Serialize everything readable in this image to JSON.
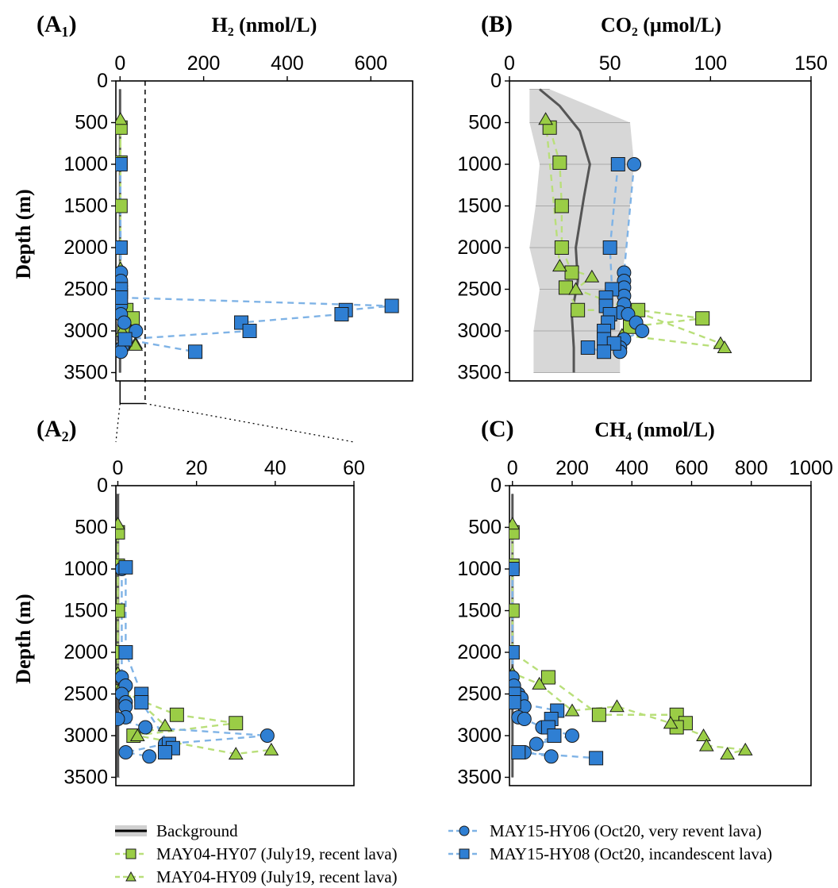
{
  "colors": {
    "green": "#9acd46",
    "green_line": "#b9df7a",
    "blue": "#2f7fd3",
    "blue_line": "#7fb3e6",
    "background_line": "#555555",
    "background_band": "#d0d0d0"
  },
  "legend": [
    {
      "label": "Background",
      "marker": "band"
    },
    {
      "label": "MAY04-HY07 (July19, recent lava)",
      "marker": "square",
      "color": "green"
    },
    {
      "label": "MAY04-HY09 (July19, recent lava)",
      "marker": "triangle",
      "color": "green"
    },
    {
      "label": "MAY15-HY06 (Oct20, very revent lava)",
      "marker": "circle",
      "color": "blue"
    },
    {
      "label": "MAY15-HY08 (Oct20, incandescent lava)",
      "marker": "square",
      "color": "blue"
    }
  ],
  "chart_data": [
    {
      "id": "A1",
      "type": "scatter",
      "panel_label": "(A₁)",
      "title": "H₂ (nmol/L)",
      "ylabel": "Depth (m)",
      "xlim": [
        -10,
        700
      ],
      "ylim": [
        0,
        3600
      ],
      "xticks": [
        0,
        200,
        400,
        600
      ],
      "yticks": [
        0,
        500,
        1000,
        1500,
        2000,
        2500,
        3000,
        3500
      ],
      "zoom_box": {
        "x": [
          0,
          60
        ],
        "y": [
          0,
          3700
        ]
      },
      "background": {
        "line": [
          {
            "x": 0,
            "y": 100
          },
          {
            "x": 0,
            "y": 3500
          }
        ],
        "band": [
          {
            "x0": -2,
            "x1": 2,
            "y": 100
          },
          {
            "x0": -2,
            "x1": 2,
            "y": 3500
          }
        ]
      },
      "series": [
        {
          "marker": "square",
          "color": "green",
          "points": [
            {
              "x": 1,
              "y": 560
            },
            {
              "x": 1,
              "y": 980
            },
            {
              "x": 1,
              "y": 1500
            },
            {
              "x": 1,
              "y": 2000
            },
            {
              "x": 1,
              "y": 2470
            },
            {
              "x": 15,
              "y": 2750
            },
            {
              "x": 30,
              "y": 2850
            },
            {
              "x": 10,
              "y": 3000
            }
          ]
        },
        {
          "marker": "triangle",
          "color": "green",
          "points": [
            {
              "x": 1,
              "y": 460
            },
            {
              "x": 1,
              "y": 2250
            },
            {
              "x": 2,
              "y": 2400
            },
            {
              "x": 12,
              "y": 2880
            },
            {
              "x": 5,
              "y": 3000
            },
            {
              "x": 37,
              "y": 3150
            },
            {
              "x": 37,
              "y": 3170
            }
          ]
        },
        {
          "marker": "circle",
          "color": "blue",
          "points": [
            {
              "x": 0,
              "y": 1000
            },
            {
              "x": 2,
              "y": 2300
            },
            {
              "x": 2,
              "y": 2400
            },
            {
              "x": 2,
              "y": 2500
            },
            {
              "x": 2,
              "y": 2600
            },
            {
              "x": 2,
              "y": 2700
            },
            {
              "x": 2,
              "y": 2800
            },
            {
              "x": 10,
              "y": 2900
            },
            {
              "x": 38,
              "y": 3000
            },
            {
              "x": 10,
              "y": 3100
            },
            {
              "x": 5,
              "y": 3200
            },
            {
              "x": 2,
              "y": 3250
            }
          ]
        },
        {
          "marker": "square",
          "color": "blue",
          "points": [
            {
              "x": 1,
              "y": 1000
            },
            {
              "x": 1,
              "y": 2000
            },
            {
              "x": 2,
              "y": 2500
            },
            {
              "x": 2,
              "y": 2600
            },
            {
              "x": 650,
              "y": 2700
            },
            {
              "x": 540,
              "y": 2750
            },
            {
              "x": 530,
              "y": 2800
            },
            {
              "x": 290,
              "y": 2900
            },
            {
              "x": 310,
              "y": 3000
            },
            {
              "x": 12,
              "y": 3100
            },
            {
              "x": 180,
              "y": 3250
            }
          ]
        }
      ]
    },
    {
      "id": "B",
      "type": "scatter",
      "panel_label": "(B)",
      "title": "CO₂ (µmol/L)",
      "ylabel": "",
      "xlim": [
        0,
        150
      ],
      "ylim": [
        0,
        3600
      ],
      "xticks": [
        0,
        50,
        100,
        150
      ],
      "yticks": [
        0,
        500,
        1000,
        1500,
        2000,
        2500,
        3000,
        3500
      ],
      "background": {
        "line": [
          {
            "x": 15,
            "y": 100
          },
          {
            "x": 25,
            "y": 300
          },
          {
            "x": 35,
            "y": 600
          },
          {
            "x": 40,
            "y": 1000
          },
          {
            "x": 37,
            "y": 1400
          },
          {
            "x": 33,
            "y": 2000
          },
          {
            "x": 34,
            "y": 2400
          },
          {
            "x": 31,
            "y": 2800
          },
          {
            "x": 32,
            "y": 3200
          },
          {
            "x": 32,
            "y": 3500
          }
        ],
        "band": [
          {
            "x0": 10,
            "x1": 20,
            "y": 100
          },
          {
            "x0": 10,
            "x1": 60,
            "y": 500
          },
          {
            "x0": 15,
            "x1": 62,
            "y": 1000
          },
          {
            "x0": 13,
            "x1": 60,
            "y": 1500
          },
          {
            "x0": 10,
            "x1": 58,
            "y": 2000
          },
          {
            "x0": 15,
            "x1": 55,
            "y": 2500
          },
          {
            "x0": 12,
            "x1": 55,
            "y": 3000
          },
          {
            "x0": 12,
            "x1": 55,
            "y": 3500
          }
        ]
      },
      "series": [
        {
          "marker": "square",
          "color": "green",
          "points": [
            {
              "x": 20,
              "y": 560
            },
            {
              "x": 25,
              "y": 980
            },
            {
              "x": 26,
              "y": 1500
            },
            {
              "x": 26,
              "y": 2000
            },
            {
              "x": 31,
              "y": 2300
            },
            {
              "x": 28,
              "y": 2480
            },
            {
              "x": 34,
              "y": 2750
            },
            {
              "x": 64,
              "y": 2750
            },
            {
              "x": 96,
              "y": 2850
            },
            {
              "x": 60,
              "y": 2950
            }
          ]
        },
        {
          "marker": "triangle",
          "color": "green",
          "points": [
            {
              "x": 18,
              "y": 460
            },
            {
              "x": 25,
              "y": 2220
            },
            {
              "x": 41,
              "y": 2350
            },
            {
              "x": 33,
              "y": 2500
            },
            {
              "x": 105,
              "y": 3150
            },
            {
              "x": 107,
              "y": 3200
            },
            {
              "x": 56,
              "y": 3050
            }
          ]
        },
        {
          "marker": "circle",
          "color": "blue",
          "points": [
            {
              "x": 62,
              "y": 1000
            },
            {
              "x": 57,
              "y": 2300
            },
            {
              "x": 57,
              "y": 2400
            },
            {
              "x": 57,
              "y": 2480
            },
            {
              "x": 57,
              "y": 2580
            },
            {
              "x": 57,
              "y": 2680
            },
            {
              "x": 55,
              "y": 2780
            },
            {
              "x": 59,
              "y": 2800
            },
            {
              "x": 63,
              "y": 2900
            },
            {
              "x": 66,
              "y": 3000
            },
            {
              "x": 57,
              "y": 3100
            },
            {
              "x": 55,
              "y": 3200
            },
            {
              "x": 55,
              "y": 3250
            }
          ]
        },
        {
          "marker": "square",
          "color": "blue",
          "points": [
            {
              "x": 54,
              "y": 1000
            },
            {
              "x": 50,
              "y": 2000
            },
            {
              "x": 51,
              "y": 2500
            },
            {
              "x": 48,
              "y": 2600
            },
            {
              "x": 48,
              "y": 2700
            },
            {
              "x": 50,
              "y": 2800
            },
            {
              "x": 49,
              "y": 2900
            },
            {
              "x": 47,
              "y": 3000
            },
            {
              "x": 47,
              "y": 3100
            },
            {
              "x": 52,
              "y": 3150
            },
            {
              "x": 39,
              "y": 3200
            },
            {
              "x": 47,
              "y": 3250
            }
          ]
        }
      ]
    },
    {
      "id": "A2",
      "type": "scatter",
      "panel_label": "(A₂)",
      "title": "",
      "ylabel": "Depth (m)",
      "xlim": [
        -0.5,
        60
      ],
      "ylim": [
        0,
        3600
      ],
      "xticks": [
        0,
        20,
        40,
        60
      ],
      "yticks": [
        0,
        500,
        1000,
        1500,
        2000,
        2500,
        3000,
        3500
      ],
      "background": {
        "line": [
          {
            "x": 0,
            "y": 100
          },
          {
            "x": 0,
            "y": 3500
          }
        ],
        "band": [
          {
            "x0": -0.3,
            "x1": 0.5,
            "y": 100
          },
          {
            "x0": -0.3,
            "x1": 0.5,
            "y": 3500
          }
        ]
      },
      "series": [
        {
          "marker": "square",
          "color": "green",
          "points": [
            {
              "x": 0,
              "y": 560
            },
            {
              "x": 0,
              "y": 960
            },
            {
              "x": 0,
              "y": 1500
            },
            {
              "x": 0,
              "y": 2000
            },
            {
              "x": 0,
              "y": 2470
            },
            {
              "x": 15,
              "y": 2750
            },
            {
              "x": 30,
              "y": 2850
            },
            {
              "x": 4,
              "y": 3000
            }
          ]
        },
        {
          "marker": "triangle",
          "color": "green",
          "points": [
            {
              "x": 0,
              "y": 460
            },
            {
              "x": 0,
              "y": 2250
            },
            {
              "x": 1,
              "y": 2400
            },
            {
              "x": 12,
              "y": 2880
            },
            {
              "x": 5,
              "y": 3000
            },
            {
              "x": 30,
              "y": 3220
            },
            {
              "x": 39,
              "y": 3170
            }
          ]
        },
        {
          "marker": "circle",
          "color": "blue",
          "points": [
            {
              "x": 1,
              "y": 1000
            },
            {
              "x": 1,
              "y": 2300
            },
            {
              "x": 2,
              "y": 2400
            },
            {
              "x": 1,
              "y": 2500
            },
            {
              "x": 2,
              "y": 2600
            },
            {
              "x": 2,
              "y": 2650
            },
            {
              "x": 2,
              "y": 2780
            },
            {
              "x": 0,
              "y": 2800
            },
            {
              "x": 7,
              "y": 2900
            },
            {
              "x": 38,
              "y": 3000
            },
            {
              "x": 12,
              "y": 3100
            },
            {
              "x": 2,
              "y": 3200
            },
            {
              "x": 8,
              "y": 3250
            }
          ]
        },
        {
          "marker": "square",
          "color": "blue",
          "points": [
            {
              "x": 2,
              "y": 980
            },
            {
              "x": 2,
              "y": 2000
            },
            {
              "x": 6,
              "y": 2500
            },
            {
              "x": 6,
              "y": 2600
            },
            {
              "x": 13,
              "y": 3100
            },
            {
              "x": 14,
              "y": 3150
            },
            {
              "x": 12,
              "y": 3200
            }
          ]
        }
      ]
    },
    {
      "id": "C",
      "type": "scatter",
      "panel_label": "(C)",
      "title": "CH₄ (nmol/L)",
      "ylabel": "",
      "xlim": [
        -10,
        1000
      ],
      "ylim": [
        0,
        3600
      ],
      "xticks": [
        0,
        200,
        400,
        600,
        800,
        1000
      ],
      "yticks": [
        0,
        500,
        1000,
        1500,
        2000,
        2500,
        3000,
        3500
      ],
      "background": {
        "line": [
          {
            "x": 0,
            "y": 100
          },
          {
            "x": 0,
            "y": 3500
          }
        ],
        "band": [
          {
            "x0": -3,
            "x1": 3,
            "y": 100
          },
          {
            "x0": -3,
            "x1": 3,
            "y": 3500
          }
        ]
      },
      "series": [
        {
          "marker": "square",
          "color": "green",
          "points": [
            {
              "x": 0,
              "y": 560
            },
            {
              "x": 0,
              "y": 960
            },
            {
              "x": 0,
              "y": 1500
            },
            {
              "x": 0,
              "y": 2000
            },
            {
              "x": 120,
              "y": 2300
            },
            {
              "x": 290,
              "y": 2750
            },
            {
              "x": 550,
              "y": 2750
            },
            {
              "x": 580,
              "y": 2850
            },
            {
              "x": 550,
              "y": 2900
            }
          ]
        },
        {
          "marker": "triangle",
          "color": "green",
          "points": [
            {
              "x": 0,
              "y": 460
            },
            {
              "x": 0,
              "y": 2250
            },
            {
              "x": 90,
              "y": 2380
            },
            {
              "x": 200,
              "y": 2700
            },
            {
              "x": 350,
              "y": 2650
            },
            {
              "x": 530,
              "y": 2850
            },
            {
              "x": 640,
              "y": 3000
            },
            {
              "x": 650,
              "y": 3120
            },
            {
              "x": 780,
              "y": 3170
            },
            {
              "x": 720,
              "y": 3220
            }
          ]
        },
        {
          "marker": "circle",
          "color": "blue",
          "points": [
            {
              "x": 0,
              "y": 1000
            },
            {
              "x": 0,
              "y": 2300
            },
            {
              "x": 5,
              "y": 2400
            },
            {
              "x": 20,
              "y": 2500
            },
            {
              "x": 30,
              "y": 2550
            },
            {
              "x": 40,
              "y": 2650
            },
            {
              "x": 20,
              "y": 2780
            },
            {
              "x": 40,
              "y": 2800
            },
            {
              "x": 100,
              "y": 2900
            },
            {
              "x": 200,
              "y": 3000
            },
            {
              "x": 80,
              "y": 3100
            },
            {
              "x": 40,
              "y": 3200
            },
            {
              "x": 130,
              "y": 3250
            }
          ]
        },
        {
          "marker": "square",
          "color": "blue",
          "points": [
            {
              "x": 0,
              "y": 1000
            },
            {
              "x": 0,
              "y": 2000
            },
            {
              "x": 5,
              "y": 2500
            },
            {
              "x": 5,
              "y": 2600
            },
            {
              "x": 150,
              "y": 2700
            },
            {
              "x": 130,
              "y": 2800
            },
            {
              "x": 120,
              "y": 2900
            },
            {
              "x": 140,
              "y": 3000
            },
            {
              "x": 20,
              "y": 3200
            },
            {
              "x": 280,
              "y": 3270
            }
          ]
        }
      ]
    }
  ]
}
